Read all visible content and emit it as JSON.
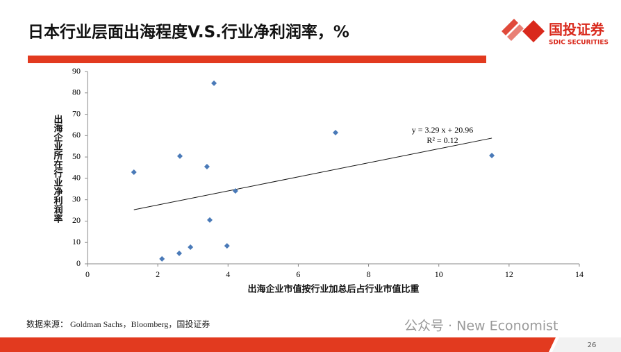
{
  "header": {
    "title": "日本行业层面出海程度V.S.行业净利润率，%",
    "logo_name": "国投证券",
    "logo_english": "SDIC SECURITIES"
  },
  "footer": {
    "source": "数据来源： Goldman Sachs，Bloomberg，国投证券",
    "watermark": "公众号 · New Economist",
    "page_number": "26"
  },
  "chart_data": {
    "type": "scatter",
    "x_label": "出海企业市值按行业加总后占行业市值比重",
    "y_label": "出海企业所在行业净利润率",
    "color": "#4a7ab8",
    "x": [
      1.32,
      2.12,
      2.61,
      2.63,
      2.93,
      3.4,
      3.48,
      3.6,
      3.97,
      4.21,
      7.06,
      11.51
    ],
    "values": [
      42.9,
      2.3,
      4.9,
      50.4,
      7.8,
      45.5,
      20.5,
      84.5,
      8.4,
      34.1,
      61.4,
      50.7
    ],
    "xlim": [
      0,
      14
    ],
    "xticks": [
      0,
      2,
      4,
      6,
      8,
      10,
      12,
      14
    ],
    "ylim": [
      0,
      90
    ],
    "yticks": [
      0,
      10,
      20,
      30,
      40,
      50,
      60,
      70,
      80,
      90
    ],
    "grid": false,
    "trendline": {
      "slope": 3.29,
      "intercept": 20.96,
      "labels": [
        "y = 3.29 x + 20.96",
        "R² = 0.12"
      ]
    }
  }
}
